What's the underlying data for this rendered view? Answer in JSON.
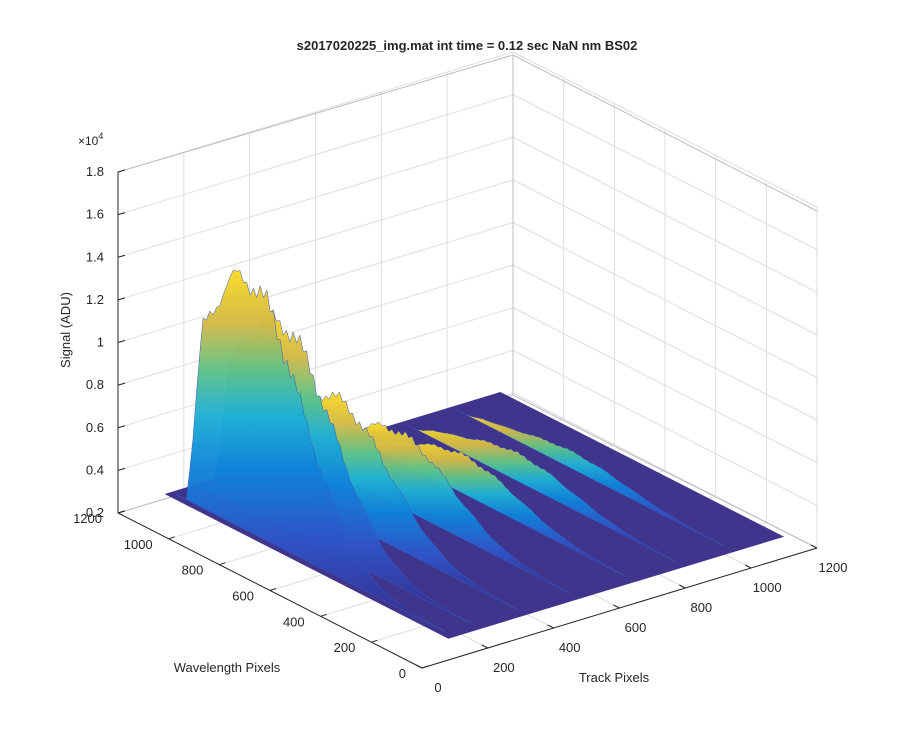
{
  "chart_data": {
    "type": "surface",
    "title": "s2017020225_img.mat int time = 0.12 sec  NaN nm BS02",
    "xlabel": "Track Pixels",
    "ylabel": "Wavelength Pixels",
    "zlabel": "Signal (ADU)",
    "z_multiplier_label": "×10",
    "z_multiplier_exponent": "4",
    "x_range": [
      0,
      1200
    ],
    "y_range": [
      0,
      1200
    ],
    "z_range": [
      2000,
      18000
    ],
    "x_ticks": [
      "0",
      "200",
      "400",
      "600",
      "800",
      "1000",
      "1200"
    ],
    "y_ticks": [
      "0",
      "200",
      "400",
      "600",
      "800",
      "1000",
      "1200"
    ],
    "z_ticks": [
      "0.2",
      "0.4",
      "0.6",
      "0.8",
      "1",
      "1.2",
      "1.4",
      "1.6",
      "1.8"
    ],
    "grid": true,
    "colormap": "parula",
    "colors": {
      "low": "#352a87",
      "mid": "#1fb0d4",
      "high": "#f9d924"
    },
    "track_profiles": [
      {
        "track_px": 100,
        "peak_wavelength_px": 820,
        "peak_signal": 14800,
        "baseline": 3000
      },
      {
        "track_px": 180,
        "peak_wavelength_px": 800,
        "peak_signal": 12600,
        "baseline": 3000
      },
      {
        "track_px": 320,
        "peak_wavelength_px": 760,
        "peak_signal": 8600,
        "baseline": 3000
      },
      {
        "track_px": 480,
        "peak_wavelength_px": 720,
        "peak_signal": 6500,
        "baseline": 3000
      },
      {
        "track_px": 650,
        "peak_wavelength_px": 680,
        "peak_signal": 4800,
        "baseline": 3000
      },
      {
        "track_px": 800,
        "peak_wavelength_px": 660,
        "peak_signal": 4300,
        "baseline": 3000
      },
      {
        "track_px": 950,
        "peak_wavelength_px": 640,
        "peak_signal": 3800,
        "baseline": 3000
      }
    ]
  }
}
